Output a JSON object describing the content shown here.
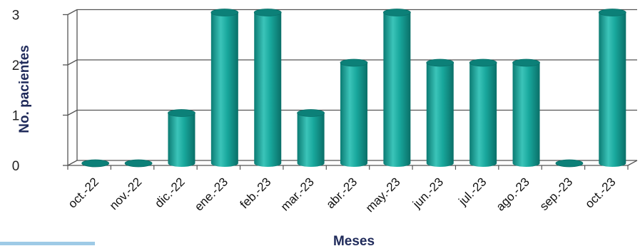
{
  "chart_data": {
    "type": "bar",
    "categories": [
      "oct.-22",
      "nov.-22",
      "dic.-22",
      "ene.-23",
      "feb.-23",
      "mar.-23",
      "abr.-23",
      "may.-23",
      "jun.-23",
      "jul.-23",
      "ago.-23",
      "sep.-23",
      "oct.-23"
    ],
    "values": [
      0,
      0,
      1,
      3,
      3,
      1,
      2,
      3,
      2,
      2,
      2,
      0,
      3
    ],
    "xlabel": "Meses",
    "ylabel": "No. pacientes",
    "ylim": [
      0,
      3
    ],
    "yticks": [
      0,
      1,
      2,
      3
    ],
    "grid": true,
    "legend": "none",
    "colors": {
      "bar_light": "#3bc4b9",
      "bar_mid": "#129e94",
      "bar_dark": "#0a6f68",
      "bar_top": "#0c8078",
      "grid": "#555555",
      "axis_title": "#1f2a5a",
      "accent_line": "#9ecae6"
    }
  }
}
